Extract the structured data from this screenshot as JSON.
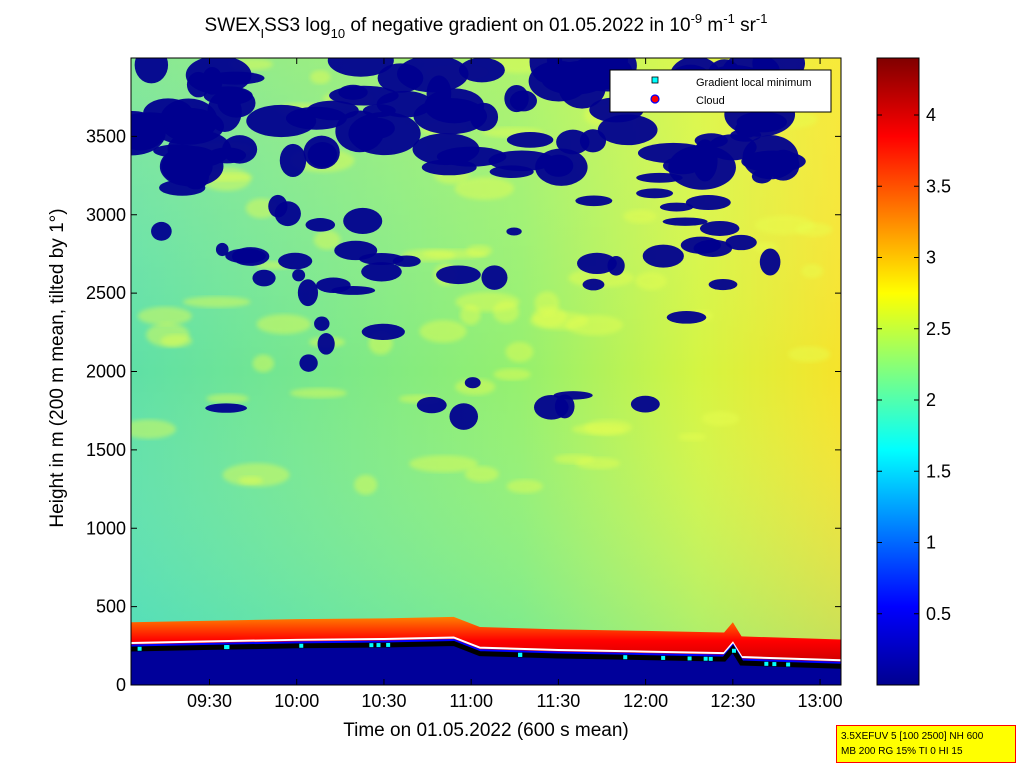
{
  "chart_data": {
    "type": "heatmap",
    "title": {
      "prefix": "SWEX",
      "sub1": "I",
      "part2": "SS3 log",
      "sub2": "10",
      "part3": " of negative gradient on 01.05.2022 in 10",
      "sup1": "-9",
      "part4": " m",
      "sup2": "-1",
      "part5": " sr",
      "sup3": "-1"
    },
    "xlabel": "Time on 01.05.2022 (600 s mean)",
    "ylabel": "Height in m (200 m mean, tilted by 1°)",
    "x_ticks": [
      {
        "label": "09:30",
        "hours": 9.5
      },
      {
        "label": "10:00",
        "hours": 10.0
      },
      {
        "label": "10:30",
        "hours": 10.5
      },
      {
        "label": "11:00",
        "hours": 11.0
      },
      {
        "label": "11:30",
        "hours": 11.5
      },
      {
        "label": "12:00",
        "hours": 12.0
      },
      {
        "label": "12:30",
        "hours": 12.5
      },
      {
        "label": "13:00",
        "hours": 13.0
      }
    ],
    "xlim_hours": [
      9.05,
      13.12
    ],
    "y_ticks": [
      0,
      500,
      1000,
      1500,
      2000,
      2500,
      3000,
      3500
    ],
    "ylim": [
      0,
      4000
    ],
    "colorbar": {
      "ticks": [
        0.5,
        1,
        1.5,
        2,
        2.5,
        3,
        3.5,
        4
      ],
      "tick_labels": [
        "0.5",
        "1",
        "1.5",
        "2",
        "2.5",
        "3",
        "3.5",
        "4"
      ],
      "range": [
        0,
        4.4
      ],
      "colormap": "jet"
    },
    "legend": {
      "placement": "top-right",
      "entries": [
        {
          "label": "Gradient local minimum",
          "color": "#00ffff",
          "marker": "square"
        },
        {
          "label": "Cloud",
          "color": "#ff0000",
          "marker": "circle"
        }
      ]
    },
    "boundary_layer_height": [
      {
        "hours": 9.05,
        "height": 230
      },
      {
        "hours": 9.5,
        "height": 240
      },
      {
        "hours": 10.0,
        "height": 250
      },
      {
        "hours": 10.5,
        "height": 255
      },
      {
        "hours": 10.9,
        "height": 265
      },
      {
        "hours": 11.05,
        "height": 200
      },
      {
        "hours": 11.5,
        "height": 185
      },
      {
        "hours": 12.0,
        "height": 175
      },
      {
        "hours": 12.45,
        "height": 165
      },
      {
        "hours": 12.5,
        "height": 230
      },
      {
        "hours": 12.55,
        "height": 140
      },
      {
        "hours": 13.12,
        "height": 120
      }
    ]
  },
  "info_box": {
    "line1": "3.5XEFUV 5 [100 2500] NH 600",
    "line2": "MB 200 RG 15% TI 0 HI 15"
  }
}
